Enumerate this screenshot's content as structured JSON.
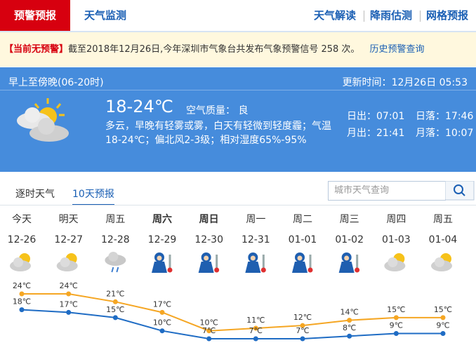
{
  "nav": {
    "tabs": [
      "预警预报",
      "天气监测"
    ],
    "links": [
      "天气解读",
      "降雨估测",
      "网格预报"
    ]
  },
  "alert": {
    "status": "【当前无预警】",
    "text": "截至2018年12月26日,今年深圳市气象台共发布气象预警信号 258 次。",
    "link": "历史预警查询"
  },
  "today": {
    "period": "早上至傍晚(06-20时)",
    "updated_label": "更新时间：",
    "updated": "12月26日 05:53",
    "temperature": "18-24℃",
    "air_quality_label": "空气质量：",
    "air_quality": "良",
    "description": "多云，早晚有轻雾或雾，白天有轻微到轻度霾；气温18-24℃；偏北风2-3级；相对湿度65%-95%",
    "sun_moon": [
      {
        "label": "日出：",
        "time": "07:01"
      },
      {
        "label": "日落：",
        "time": "17:46"
      },
      {
        "label": "月出：",
        "time": "21:41"
      },
      {
        "label": "月落：",
        "time": "10:07"
      }
    ]
  },
  "forecast_tabs": [
    "逐时天气",
    "10天预报"
  ],
  "search_placeholder": "城市天气查询",
  "chart_data": {
    "type": "line",
    "weekdays": [
      "今天",
      "明天",
      "周五",
      "周六",
      "周日",
      "周一",
      "周二",
      "周三",
      "周四",
      "周五"
    ],
    "categories": [
      "12-26",
      "12-27",
      "12-28",
      "12-29",
      "12-30",
      "12-31",
      "01-01",
      "01-02",
      "01-03",
      "01-04"
    ],
    "series": [
      {
        "color": "#f5a623",
        "values": [
          24,
          24,
          21,
          17,
          10,
          11,
          12,
          14,
          15,
          15
        ],
        "value_labels": [
          "24℃",
          "24℃",
          "21℃",
          "17℃",
          "10℃",
          "11℃",
          "12℃",
          "14℃",
          "15℃",
          "15℃"
        ]
      },
      {
        "color": "#1f6cc4",
        "values": [
          18,
          17,
          15,
          10,
          7,
          7,
          7,
          8,
          9,
          9
        ],
        "value_labels": [
          "18℃",
          "17℃",
          "15℃",
          "10℃",
          "7℃",
          "7℃",
          "7℃",
          "8℃",
          "9℃",
          "9℃"
        ]
      }
    ]
  }
}
